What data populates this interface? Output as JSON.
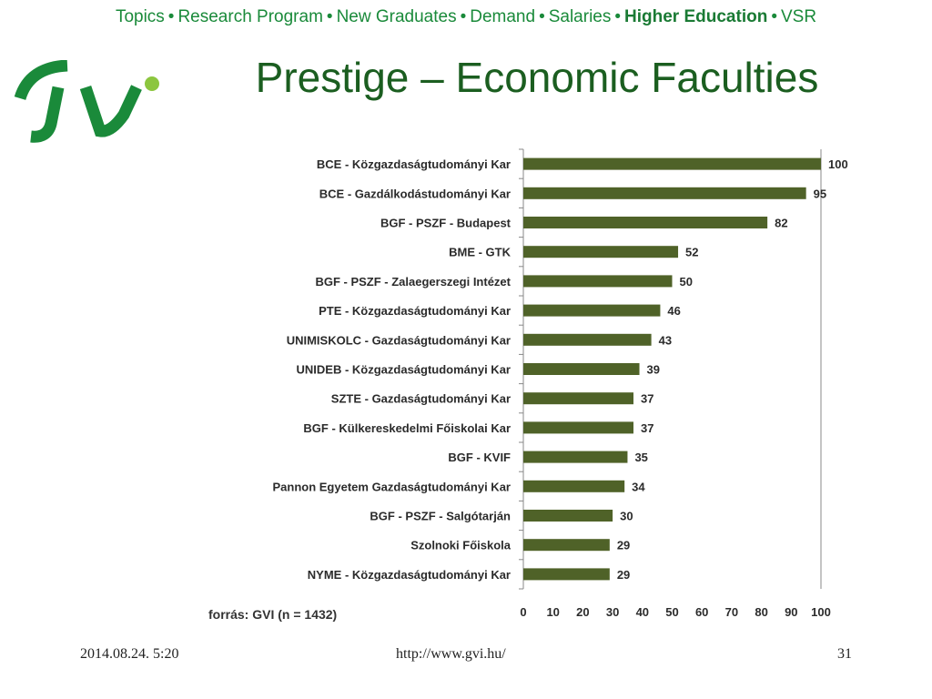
{
  "nav": {
    "items": [
      {
        "label": "Topics",
        "active": false
      },
      {
        "label": "Research Program",
        "active": false
      },
      {
        "label": "New Graduates",
        "active": false
      },
      {
        "label": "Demand",
        "active": false
      },
      {
        "label": "Salaries",
        "active": false
      },
      {
        "label": "Higher Education",
        "active": true
      },
      {
        "label": "VSR",
        "active": false
      }
    ],
    "separator": "•",
    "color": "#1a8a3a"
  },
  "logo": {
    "text": "GVI",
    "colors": {
      "primary": "#1a8a3a",
      "accent": "#8cc63f"
    }
  },
  "slide": {
    "title": "Prestige – Economic Faculties"
  },
  "chart_data": {
    "type": "bar",
    "orientation": "horizontal",
    "categories": [
      "BCE - Közgazdaságtudományi Kar",
      "BCE - Gazdálkodástudományi Kar",
      "BGF - PSZF - Budapest",
      "BME - GTK",
      "BGF - PSZF - Zalaegerszegi Intézet",
      "PTE - Közgazdaságtudományi Kar",
      "UNIMISKOLC - Gazdaságtudományi Kar",
      "UNIDEB - Közgazdaságtudományi Kar",
      "SZTE - Gazdaságtudományi Kar",
      "BGF - Külkereskedelmi Főiskolai Kar",
      "BGF - KVIF",
      "Pannon Egyetem Gazdaságtudományi Kar",
      "BGF - PSZF - Salgótarján",
      "Szolnoki Főiskola",
      "NYME - Közgazdaságtudományi Kar"
    ],
    "values": [
      100,
      95,
      82,
      52,
      50,
      46,
      43,
      39,
      37,
      37,
      35,
      34,
      30,
      29,
      29
    ],
    "xlim": [
      0,
      100
    ],
    "xticks": [
      0,
      10,
      20,
      30,
      40,
      50,
      60,
      70,
      80,
      90,
      100
    ],
    "bar_color": "#4f6228",
    "data_labels": true,
    "grid": false,
    "source": "forrás: GVI (n = 1432)"
  },
  "footer": {
    "date": "2014.08.24. 5:20",
    "url": "http://www.gvi.hu/",
    "page": "31"
  }
}
